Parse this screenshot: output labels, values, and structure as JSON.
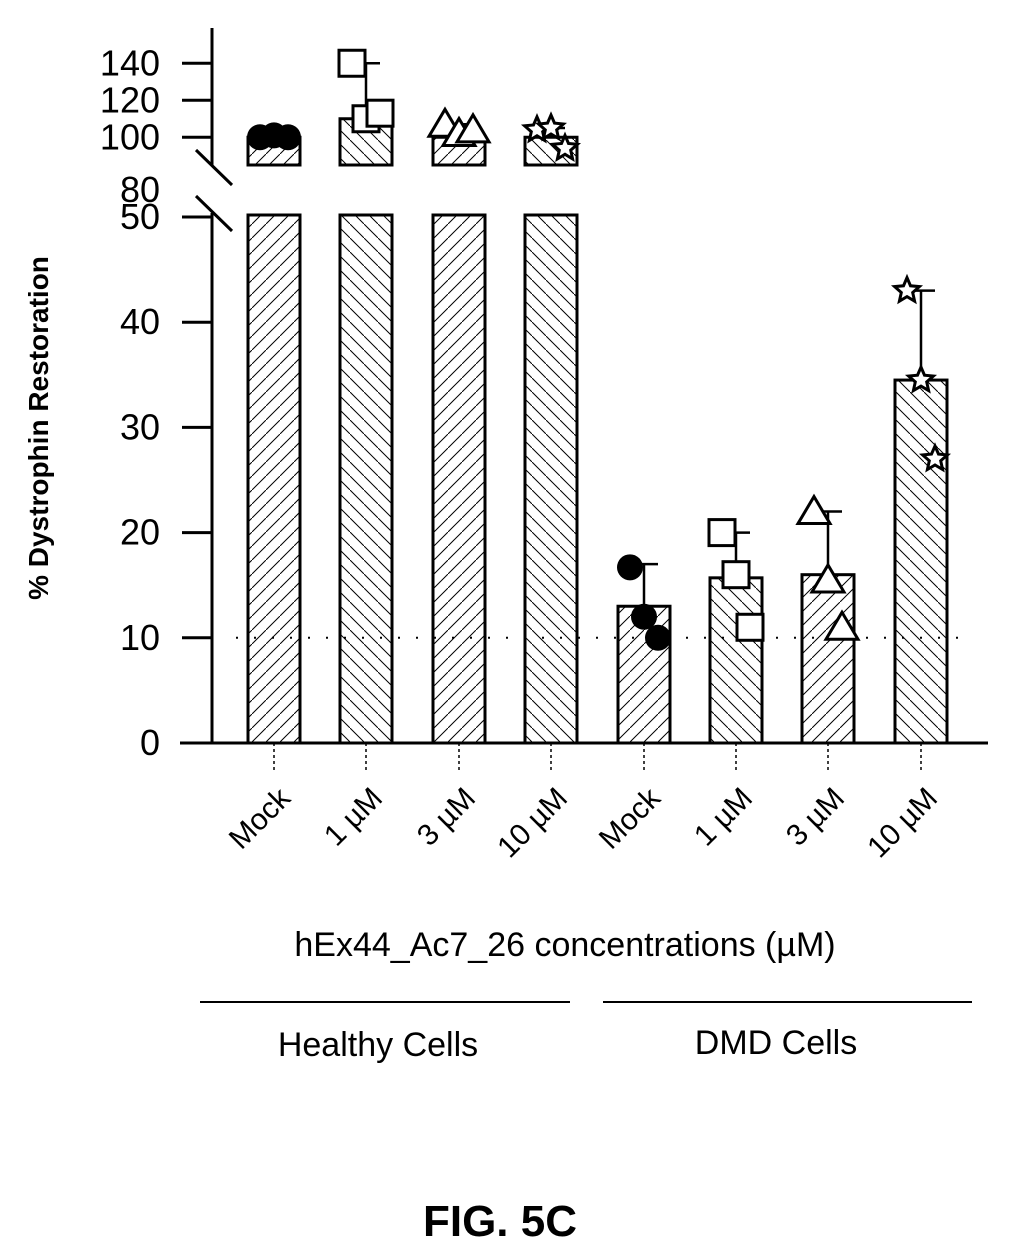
{
  "chart_data": {
    "type": "bar",
    "ylabel": "% Dystrophin Restoration",
    "xlabel": "hEx44_Ac7_26 concentrations (µM)",
    "figure_label": "FIG. 5C",
    "y_axis": {
      "lower_ticks": [
        0,
        10,
        20,
        30,
        40,
        50
      ],
      "upper_ticks": [
        80,
        100,
        120,
        140
      ],
      "lower_range": [
        0,
        55
      ],
      "upper_range": [
        85,
        145
      ],
      "axis_break": true
    },
    "reference_line": 10,
    "groups": [
      {
        "label": "Healthy Cells"
      },
      {
        "label": "DMD Cells"
      }
    ],
    "categories": [
      "Mock",
      "1 µM",
      "3 µM",
      "10 µM",
      "Mock",
      "1 µM",
      "3 µM",
      "10 µM"
    ],
    "bars": [
      {
        "group": 0,
        "category": "Mock",
        "value": 100,
        "err_low": 100,
        "err_high": 101,
        "marker": "circle",
        "points": [
          100,
          101,
          100
        ]
      },
      {
        "group": 0,
        "category": "1 µM",
        "value": 110,
        "err_low": 110,
        "err_high": 140,
        "marker": "square",
        "points": [
          140,
          110,
          113
        ]
      },
      {
        "group": 0,
        "category": "3 µM",
        "value": 100,
        "err_low": 100,
        "err_high": 107,
        "marker": "triangle",
        "points": [
          107,
          102,
          104
        ]
      },
      {
        "group": 0,
        "category": "10 µM",
        "value": 100,
        "err_low": 100,
        "err_high": 105,
        "marker": "star",
        "points": [
          104,
          105,
          94
        ]
      },
      {
        "group": 1,
        "category": "Mock",
        "value": 13,
        "err_low": 13,
        "err_high": 17,
        "marker": "circle",
        "points": [
          16.7,
          12,
          10
        ]
      },
      {
        "group": 1,
        "category": "1 µM",
        "value": 15.7,
        "err_low": 15.7,
        "err_high": 20,
        "marker": "square",
        "points": [
          20,
          16,
          11
        ]
      },
      {
        "group": 1,
        "category": "3 µM",
        "value": 16,
        "err_low": 16,
        "err_high": 22,
        "marker": "triangle",
        "points": [
          22,
          15.5,
          11
        ]
      },
      {
        "group": 1,
        "category": "10 µM",
        "value": 34.5,
        "err_low": 34.5,
        "err_high": 43,
        "marker": "star",
        "points": [
          43,
          34.5,
          27
        ]
      }
    ]
  }
}
